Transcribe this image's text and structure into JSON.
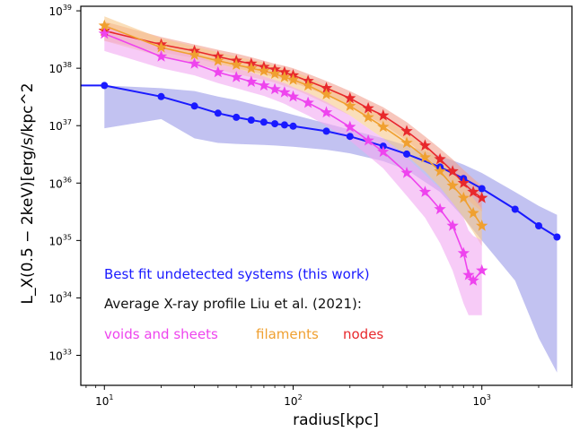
{
  "chart_data": {
    "type": "line",
    "xscale": "log",
    "yscale": "log",
    "xlim": [
      7.5,
      3000
    ],
    "ylim": [
      3e+32,
      1.2e+39
    ],
    "xlabel": "radius[kpc]",
    "ylabel": "L_X(0.5 − 2keV)[erg/s/kpc^2",
    "x_ticks": [
      {
        "base": "10",
        "exp": "1"
      },
      {
        "base": "10",
        "exp": "2"
      },
      {
        "base": "10",
        "exp": "3"
      }
    ],
    "y_ticks": [
      {
        "base": "10",
        "exp": "33"
      },
      {
        "base": "10",
        "exp": "34"
      },
      {
        "base": "10",
        "exp": "35"
      },
      {
        "base": "10",
        "exp": "36"
      },
      {
        "base": "10",
        "exp": "37"
      },
      {
        "base": "10",
        "exp": "38"
      },
      {
        "base": "10",
        "exp": "39"
      }
    ],
    "legend_lines": {
      "best_fit": "Best fit undetected systems (this work)",
      "liu_title": "Average X-ray profile Liu et al. (2021):",
      "voids": "voids and sheets",
      "filaments": "filaments",
      "nodes": "nodes"
    },
    "legend_placement": "lower-left",
    "colors": {
      "best_fit": "#1a1aff",
      "best_fit_band": "#9a9ae8",
      "voids": "#ee44ee",
      "voids_band": "#f2a8f2",
      "filaments": "#f0a030",
      "filaments_band": "#f6c88a",
      "nodes": "#e8282c",
      "nodes_band": "#f2a090",
      "liu_title": "#111111"
    },
    "series": [
      {
        "name": "Best fit undetected systems (this work)",
        "color_key": "best_fit",
        "x": [
          10,
          20,
          30,
          40,
          50,
          60,
          70,
          80,
          90,
          100,
          150,
          200,
          300,
          400,
          600,
          800,
          1000,
          1500,
          2000,
          2500
        ],
        "y": [
          5e+37,
          3.2e+37,
          2.2e+37,
          1.65e+37,
          1.4e+37,
          1.25e+37,
          1.15e+37,
          1.08e+37,
          1.03e+37,
          9.8e+36,
          8e+36,
          6.5e+36,
          4.4e+36,
          3.2e+36,
          1.9e+36,
          1.2e+36,
          8e+35,
          3.5e+35,
          1.8e+35,
          1.15e+35
        ],
        "upper": [
          5e+37,
          4.5e+37,
          4e+37,
          3.2e+37,
          2.8e+37,
          2.4e+37,
          2.1e+37,
          1.9e+37,
          1.7e+37,
          1.55e+37,
          1.1e+37,
          8.5e+36,
          6e+36,
          4.5e+36,
          3e+36,
          2.1e+36,
          1.5e+36,
          7e+35,
          4e+35,
          2.8e+35
        ],
        "lower": [
          9e+36,
          1.3e+37,
          6e+36,
          5e+36,
          4.8e+36,
          4.7e+36,
          4.6e+36,
          4.5e+36,
          4.4e+36,
          4.3e+36,
          3.8e+36,
          3.3e+36,
          2.4e+36,
          1.7e+36,
          7e+35,
          2.5e+35,
          1e+35,
          2e+34,
          2e+33,
          5e+32
        ]
      },
      {
        "name": "nodes",
        "color_key": "nodes",
        "x": [
          10,
          20,
          30,
          40,
          50,
          60,
          70,
          80,
          90,
          100,
          120,
          150,
          200,
          250,
          300,
          400,
          500,
          600,
          700,
          800,
          900,
          1000
        ],
        "y": [
          4.5e+38,
          2.6e+38,
          2e+38,
          1.6e+38,
          1.35e+38,
          1.2e+38,
          1.05e+38,
          9.5e+37,
          8.5e+37,
          7.5e+37,
          6e+37,
          4.5e+37,
          3e+37,
          2e+37,
          1.5e+37,
          8e+36,
          4.5e+36,
          2.6e+36,
          1.6e+36,
          1e+36,
          7e+35,
          5.5e+35
        ],
        "upper": [
          6.5e+38,
          3.5e+38,
          2.6e+38,
          2.1e+38,
          1.8e+38,
          1.55e+38,
          1.35e+38,
          1.2e+38,
          1.1e+38,
          1e+38,
          8e+37,
          6e+37,
          4e+37,
          2.8e+37,
          2.1e+37,
          1.15e+37,
          6.5e+36,
          4e+36,
          2.6e+36,
          1.7e+36,
          1.2e+36,
          9e+35
        ],
        "lower": [
          3e+38,
          1.9e+38,
          1.5e+38,
          1.2e+38,
          1e+38,
          8.8e+37,
          7.8e+37,
          7e+37,
          6.3e+37,
          5.6e+37,
          4.5e+37,
          3.4e+37,
          2.2e+37,
          1.45e+37,
          1.05e+37,
          5.5e+36,
          3e+36,
          1.7e+36,
          1e+36,
          6e+35,
          4.2e+35,
          3.2e+35
        ]
      },
      {
        "name": "filaments",
        "color_key": "filaments",
        "x": [
          10,
          20,
          30,
          40,
          50,
          60,
          70,
          80,
          90,
          100,
          120,
          150,
          200,
          250,
          300,
          400,
          500,
          600,
          700,
          800,
          900,
          1000
        ],
        "y": [
          5.5e+38,
          2.3e+38,
          1.7e+38,
          1.35e+38,
          1.15e+38,
          1e+38,
          9e+37,
          8e+37,
          7e+37,
          6.3e+37,
          5e+37,
          3.5e+37,
          2.2e+37,
          1.4e+37,
          9.5e+36,
          5e+36,
          2.8e+36,
          1.6e+36,
          9e+35,
          5.5e+35,
          3e+35,
          1.8e+35
        ],
        "upper": [
          8e+38,
          3.3e+38,
          2.4e+38,
          1.9e+38,
          1.6e+38,
          1.4e+38,
          1.25e+38,
          1.1e+38,
          9.8e+37,
          8.8e+37,
          7e+37,
          4.9e+37,
          3.1e+37,
          2e+37,
          1.4e+37,
          7.5e+36,
          4.3e+36,
          2.5e+36,
          1.5e+36,
          9.5e+35,
          5.5e+35,
          3.5e+35
        ],
        "lower": [
          3e+38,
          1.6e+38,
          1.2e+38,
          9.5e+37,
          8e+37,
          7e+37,
          6.3e+37,
          5.6e+37,
          4.9e+37,
          4.4e+37,
          3.4e+37,
          2.4e+37,
          1.5e+37,
          9e+36,
          6e+36,
          3e+36,
          1.6e+36,
          8.5e+35,
          4.5e+35,
          2.5e+35,
          1.4e+35,
          8e+34
        ]
      },
      {
        "name": "voids and sheets",
        "color_key": "voids",
        "x": [
          10,
          20,
          30,
          40,
          50,
          60,
          70,
          80,
          90,
          100,
          120,
          150,
          200,
          250,
          300,
          400,
          500,
          600,
          700,
          800,
          850,
          900,
          1000
        ],
        "y": [
          4e+38,
          1.6e+38,
          1.2e+38,
          8.5e+37,
          7e+37,
          5.8e+37,
          5e+37,
          4.3e+37,
          3.8e+37,
          3.2e+37,
          2.5e+37,
          1.7e+37,
          9.5e+36,
          5.5e+36,
          3.5e+36,
          1.5e+36,
          7e+35,
          3.5e+35,
          1.8e+35,
          6e+34,
          2.5e+34,
          2e+34,
          3e+34
        ],
        "upper": [
          5.5e+38,
          2.3e+38,
          1.7e+38,
          1.2e+38,
          1e+38,
          8.5e+37,
          7.2e+37,
          6.2e+37,
          5.5e+37,
          4.7e+37,
          3.7e+37,
          2.6e+37,
          1.5e+37,
          9e+36,
          6e+36,
          2.8e+36,
          1.4e+36,
          8e+35,
          4.5e+35,
          2.5e+35,
          1.5e+35,
          1.2e+35,
          1e+35
        ],
        "lower": [
          2e+38,
          1e+38,
          7.5e+37,
          5.5e+37,
          4.5e+37,
          3.8e+37,
          3.3e+37,
          2.8e+37,
          2.4e+37,
          2e+37,
          1.5e+37,
          1e+37,
          5.5e+36,
          3e+36,
          1.8e+36,
          6e+35,
          2.5e+35,
          9e+34,
          3e+34,
          8e+33,
          5e+33,
          5e+33,
          5e+33
        ]
      }
    ]
  }
}
